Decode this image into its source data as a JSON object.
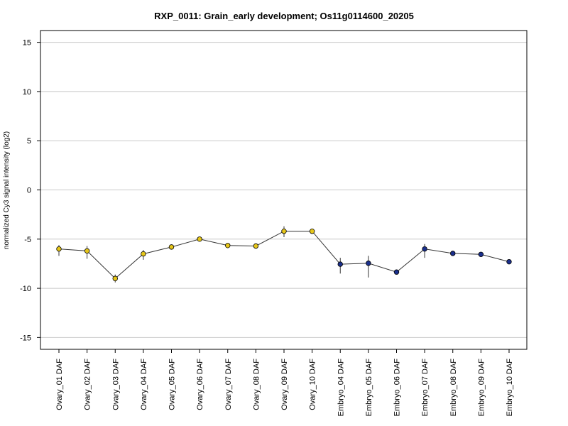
{
  "chart_data": {
    "type": "line",
    "title": "RXP_0011: Grain_early development; Os11g0114600_20205",
    "xlabel": "",
    "ylabel": "normalized Cy3 signal intensity (log2)",
    "ylim": [
      -16.2,
      16.2
    ],
    "yticks": [
      -15,
      -10,
      -5,
      0,
      5,
      10,
      15
    ],
    "grid": true,
    "categories": [
      "Ovary_01 DAF",
      "Ovary_02 DAF",
      "Ovary_03 DAF",
      "Ovary_04 DAF",
      "Ovary_05 DAF",
      "Ovary_06 DAF",
      "Ovary_07 DAF",
      "Ovary_08 DAF",
      "Ovary_09 DAF",
      "Ovary_10 DAF",
      "Embryo_04 DAF",
      "Embryo_05 DAF",
      "Embryo_06 DAF",
      "Embryo_07 DAF",
      "Embryo_08 DAF",
      "Embryo_09 DAF",
      "Embryo_10 DAF"
    ],
    "values": [
      -6.0,
      -6.2,
      -9.0,
      -6.5,
      -5.8,
      -5.0,
      -5.65,
      -5.7,
      -4.2,
      -4.2,
      -7.55,
      -7.45,
      -8.35,
      -6.0,
      -6.45,
      -6.55,
      -7.3
    ],
    "error_low": [
      -6.7,
      -7.0,
      -9.4,
      -7.1,
      -5.9,
      -5.05,
      -5.7,
      -5.9,
      -4.8,
      -4.3,
      -8.5,
      -8.9,
      -8.5,
      -6.9,
      -6.5,
      -6.6,
      -7.35
    ],
    "error_high": [
      -5.6,
      -5.7,
      -8.6,
      -6.1,
      -5.7,
      -4.95,
      -5.6,
      -5.5,
      -3.7,
      -4.1,
      -6.9,
      -6.7,
      -8.2,
      -5.5,
      -6.4,
      -6.5,
      -7.25
    ],
    "point_colors": [
      "#e6c619",
      "#e6c619",
      "#e6c619",
      "#e6c619",
      "#e6c619",
      "#e6c619",
      "#e6c619",
      "#e6c619",
      "#e6c619",
      "#e6c619",
      "#1a2f8c",
      "#1a2f8c",
      "#1a2f8c",
      "#1a2f8c",
      "#1a2f8c",
      "#1a2f8c",
      "#1a2f8c"
    ],
    "line_color": "#333333",
    "grid_color": "#c8c8c8"
  }
}
